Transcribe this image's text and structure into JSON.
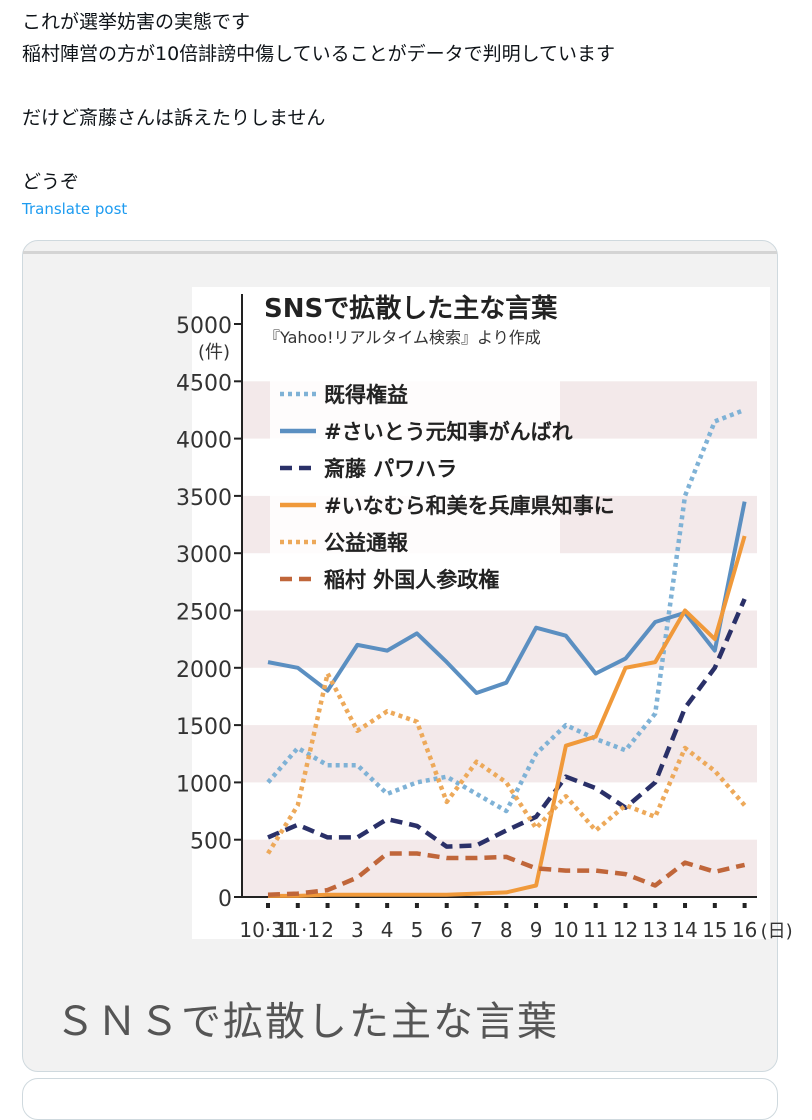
{
  "post": {
    "lines": [
      "これが選挙妨害の実態です",
      "稲村陣営の方が10倍誹謗中傷していることがデータで判明しています",
      "",
      "だけど斎藤さんは訴えたりしません",
      "",
      "どうぞ"
    ],
    "translate_label": "Translate post"
  },
  "card": {
    "caption": "ＳＮＳで拡散した主な言葉"
  },
  "chart_data": {
    "type": "line",
    "title": "SNSで拡散した主な言葉",
    "subtitle": "『Yahoo!リアルタイム検索』より作成",
    "ylabel": "(件)",
    "xlabel_suffix": "(日)",
    "ylim": [
      0,
      5000
    ],
    "yticks": [
      "0",
      "500",
      "1000",
      "1500",
      "2000",
      "2500",
      "3000",
      "3500",
      "4000",
      "4500",
      "5000"
    ],
    "categories": [
      "10·31",
      "11·1",
      "2",
      "3",
      "4",
      "5",
      "6",
      "7",
      "8",
      "9",
      "10",
      "11",
      "12",
      "13",
      "14",
      "15",
      "16"
    ],
    "series": [
      {
        "name": "既得権益",
        "color": "#7fb2d6",
        "style": "dotted",
        "values": [
          1000,
          1300,
          1150,
          1150,
          900,
          1000,
          1050,
          900,
          750,
          1250,
          1500,
          1380,
          1280,
          1600,
          3500,
          4150,
          4250
        ]
      },
      {
        "name": "#さいとう元知事がんばれ",
        "color": "#5b8fc1",
        "style": "solid",
        "values": [
          2050,
          2000,
          1800,
          2200,
          2150,
          2300,
          2050,
          1780,
          1870,
          2350,
          2280,
          1950,
          2080,
          2400,
          2480,
          2150,
          3450
        ]
      },
      {
        "name": "斎藤 パワハラ",
        "color": "#2a3068",
        "style": "dashed",
        "values": [
          520,
          630,
          520,
          520,
          680,
          620,
          440,
          450,
          580,
          700,
          1050,
          950,
          780,
          1000,
          1650,
          2000,
          2600
        ]
      },
      {
        "name": "#いなむら和美を兵庫県知事に",
        "color": "#f0993a",
        "style": "solid",
        "values": [
          10,
          10,
          20,
          20,
          20,
          20,
          20,
          30,
          40,
          100,
          1320,
          1400,
          2000,
          2050,
          2500,
          2250,
          3150
        ]
      },
      {
        "name": "公益通報",
        "color": "#eda95a",
        "style": "dotted",
        "values": [
          380,
          800,
          1950,
          1450,
          1620,
          1530,
          830,
          1180,
          1000,
          600,
          880,
          580,
          800,
          700,
          1300,
          1100,
          800
        ]
      },
      {
        "name": "稲村 外国人参政権",
        "color": "#c0663a",
        "style": "dashed",
        "values": [
          20,
          30,
          60,
          170,
          380,
          380,
          340,
          340,
          350,
          250,
          230,
          230,
          200,
          100,
          300,
          220,
          280
        ]
      }
    ],
    "grid": "alternating horizontal bands",
    "legend_position": "top-left"
  }
}
